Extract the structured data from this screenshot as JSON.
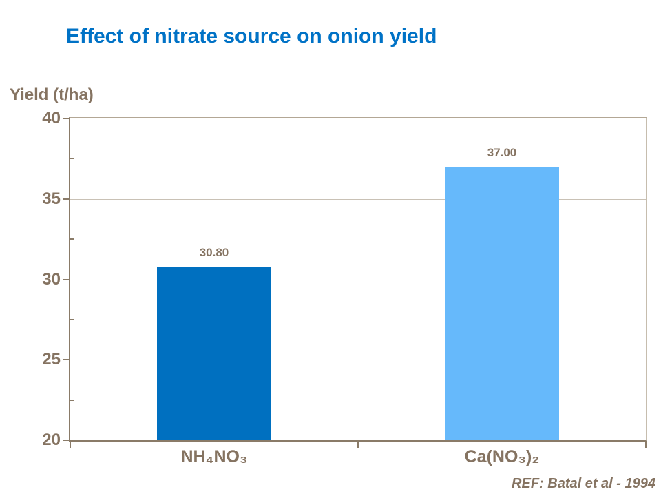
{
  "title": "Effect of nitrate source on onion yield",
  "y_axis_label": "Yield (t/ha)",
  "ref_note": "REF: Batal et al - 1994",
  "colors": {
    "title_blue": "#0072C6",
    "axis_text_brown": "#857361",
    "axis_line_brown": "#8A7B68",
    "gridline_tan": "#C9C1B5",
    "bar_dark_blue": "#0070C0",
    "bar_light_blue": "#66B9FB"
  },
  "chart_data": {
    "type": "bar",
    "title": "Effect of nitrate source on onion yield",
    "categories": [
      "NH₄NO₃",
      "Ca(NO₃)₂"
    ],
    "values": [
      30.8,
      37.0
    ],
    "value_labels": [
      "30.80",
      "37.00"
    ],
    "bar_colors": [
      "#0070C0",
      "#66B9FB"
    ],
    "xlabel": "",
    "ylabel": "Yield (t/ha)",
    "ylim": [
      20,
      40
    ],
    "yticks": [
      20,
      25,
      30,
      35,
      40
    ],
    "minor_yticks": [
      22.5,
      27.5,
      32.5,
      37.5
    ],
    "grid": "horizontal major gridlines on",
    "legend": "none",
    "annotation": "REF: Batal et al - 1994"
  }
}
